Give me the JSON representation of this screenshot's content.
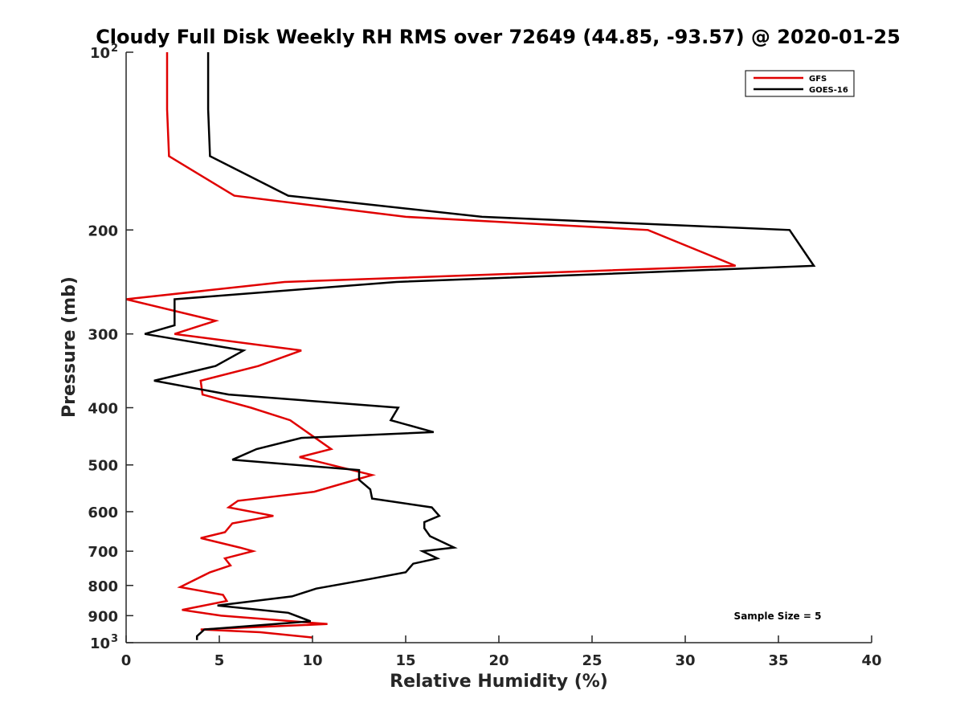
{
  "chart_data": {
    "type": "line",
    "title": "Cloudy Full Disk Weekly RH RMS over 72649 (44.85, -93.57) @ 2020-01-25",
    "xlabel": "Relative Humidity (%)",
    "ylabel": "Pressure (mb)",
    "xlim": [
      0,
      40
    ],
    "ylim": [
      100,
      1000
    ],
    "yscale": "log",
    "y_reversed": true,
    "grid": false,
    "legend_position": "top-right",
    "x_ticks": [
      "0",
      "5",
      "10",
      "15",
      "20",
      "25",
      "30",
      "35",
      "40"
    ],
    "y_ticks": [
      {
        "value": 100,
        "label": "10",
        "sup": "2"
      },
      {
        "value": 200,
        "label": "200",
        "sup": ""
      },
      {
        "value": 300,
        "label": "300",
        "sup": ""
      },
      {
        "value": 400,
        "label": "400",
        "sup": ""
      },
      {
        "value": 500,
        "label": "500",
        "sup": ""
      },
      {
        "value": 600,
        "label": "600",
        "sup": ""
      },
      {
        "value": 700,
        "label": "700",
        "sup": ""
      },
      {
        "value": 800,
        "label": "800",
        "sup": ""
      },
      {
        "value": 900,
        "label": "900",
        "sup": ""
      },
      {
        "value": 1000,
        "label": "10",
        "sup": "3"
      }
    ],
    "annotation": "Sample Size = 5",
    "series": [
      {
        "name": "GFS",
        "color": "#e00000",
        "points": [
          [
            2.2,
            100
          ],
          [
            2.2,
            125
          ],
          [
            2.3,
            150
          ],
          [
            5.8,
            175
          ],
          [
            15.0,
            190
          ],
          [
            28.0,
            200
          ],
          [
            32.7,
            230
          ],
          [
            8.5,
            245
          ],
          [
            0.0,
            262
          ],
          [
            4.8,
            285
          ],
          [
            2.6,
            300
          ],
          [
            9.4,
            320
          ],
          [
            7.1,
            340
          ],
          [
            4.0,
            360
          ],
          [
            4.1,
            380
          ],
          [
            6.7,
            400
          ],
          [
            8.8,
            420
          ],
          [
            11.0,
            470
          ],
          [
            9.3,
            485
          ],
          [
            13.2,
            520
          ],
          [
            10.1,
            555
          ],
          [
            6.0,
            575
          ],
          [
            5.5,
            590
          ],
          [
            7.9,
            610
          ],
          [
            5.7,
            628
          ],
          [
            5.3,
            650
          ],
          [
            4.0,
            665
          ],
          [
            6.1,
            690
          ],
          [
            6.8,
            700
          ],
          [
            5.3,
            720
          ],
          [
            5.6,
            740
          ],
          [
            4.5,
            760
          ],
          [
            2.9,
            805
          ],
          [
            5.2,
            830
          ],
          [
            5.4,
            850
          ],
          [
            3.0,
            880
          ],
          [
            5.1,
            900
          ],
          [
            10.8,
            930
          ],
          [
            4.0,
            950
          ],
          [
            7.2,
            960
          ],
          [
            10.0,
            980
          ]
        ]
      },
      {
        "name": "GOES-16",
        "color": "#000000",
        "points": [
          [
            4.4,
            100
          ],
          [
            4.4,
            125
          ],
          [
            4.5,
            150
          ],
          [
            8.7,
            175
          ],
          [
            19.1,
            190
          ],
          [
            35.6,
            200
          ],
          [
            36.9,
            230
          ],
          [
            14.5,
            245
          ],
          [
            2.6,
            262
          ],
          [
            2.6,
            290
          ],
          [
            1.0,
            300
          ],
          [
            6.3,
            320
          ],
          [
            4.8,
            340
          ],
          [
            1.5,
            360
          ],
          [
            5.5,
            380
          ],
          [
            14.6,
            400
          ],
          [
            14.2,
            420
          ],
          [
            16.5,
            440
          ],
          [
            9.4,
            450
          ],
          [
            7.0,
            470
          ],
          [
            5.7,
            490
          ],
          [
            12.5,
            510
          ],
          [
            12.5,
            530
          ],
          [
            13.1,
            550
          ],
          [
            13.2,
            570
          ],
          [
            16.4,
            590
          ],
          [
            16.8,
            610
          ],
          [
            16.0,
            625
          ],
          [
            16.0,
            640
          ],
          [
            16.3,
            660
          ],
          [
            17.6,
            690
          ],
          [
            15.9,
            700
          ],
          [
            16.7,
            720
          ],
          [
            15.4,
            735
          ],
          [
            15.0,
            760
          ],
          [
            13.1,
            780
          ],
          [
            10.2,
            810
          ],
          [
            8.9,
            835
          ],
          [
            4.9,
            865
          ],
          [
            8.7,
            890
          ],
          [
            9.9,
            920
          ],
          [
            4.2,
            950
          ],
          [
            3.8,
            975
          ],
          [
            3.8,
            990
          ]
        ]
      }
    ]
  }
}
